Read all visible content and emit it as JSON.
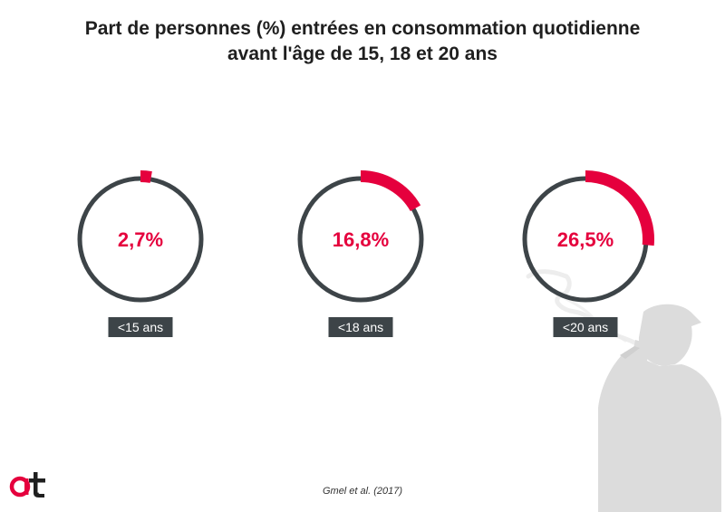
{
  "colors": {
    "accent": "#e5003d",
    "ring": "#3d4448",
    "label_bg": "#3d4448",
    "label_text": "#ffffff",
    "silhouette": "#dcdcdc",
    "text": "#1f1f1f"
  },
  "title_lines": [
    "Part de personnes (%) entrées en consommation quotidienne",
    "avant l'âge de 15, 18 et 20 ans"
  ],
  "source": "Gmel et al. (2017)",
  "icons": {
    "logo": "at-logo",
    "decoration": "smoking-person-silhouette"
  },
  "chart_data": {
    "type": "pie",
    "categories": [
      "<15 ans",
      "<18 ans",
      "<20 ans"
    ],
    "values": [
      2.7,
      16.8,
      26.5
    ],
    "value_labels": [
      "2,7%",
      "16,8%",
      "26,5%"
    ],
    "unit": "%",
    "max": 100
  }
}
